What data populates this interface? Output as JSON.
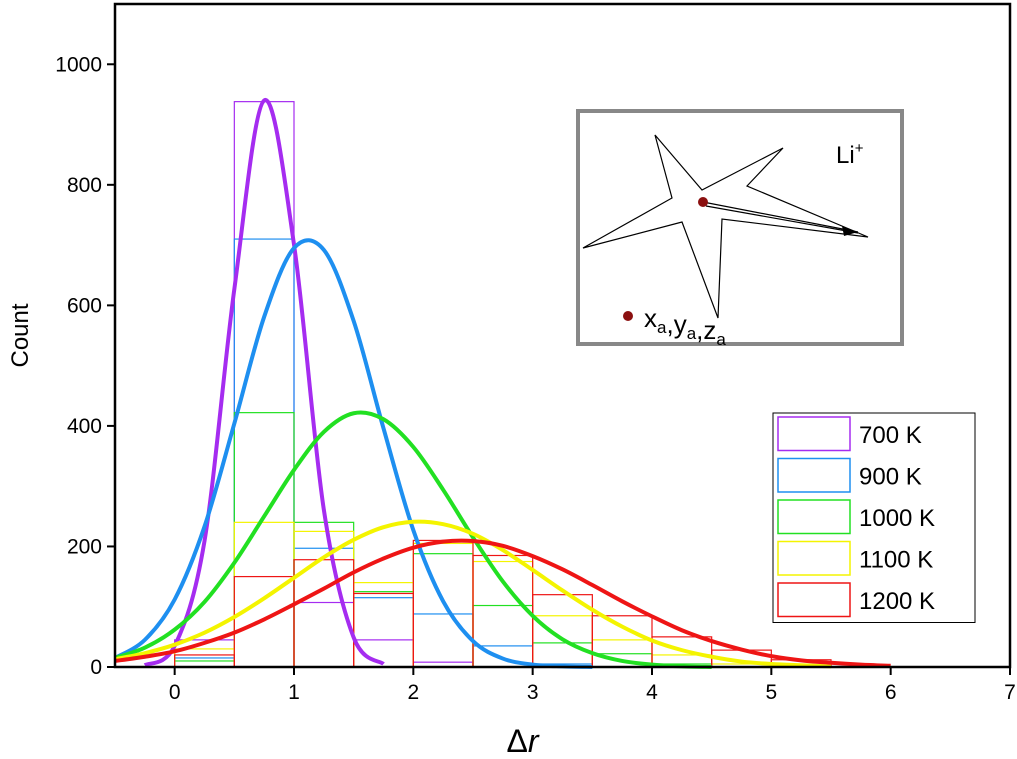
{
  "chart_data": {
    "type": "histogram",
    "xlabel": [
      "Δ",
      "r"
    ],
    "ylabel": "Count",
    "xlim": [
      -0.5,
      7
    ],
    "ylim": [
      0,
      1100
    ],
    "xticks": [
      0,
      1,
      2,
      3,
      4,
      5,
      6,
      7
    ],
    "yticks": [
      0,
      200,
      400,
      600,
      800,
      1000
    ],
    "bins": [
      0,
      0.5,
      1,
      1.5,
      2,
      2.5,
      3,
      3.5,
      4,
      4.5,
      5,
      5.5,
      6
    ],
    "legend": "right",
    "series": [
      {
        "name": "700 K",
        "color": "#a52cf0",
        "values": [
          45,
          938,
          107,
          45,
          8,
          0,
          0,
          0,
          0,
          0,
          0,
          0
        ],
        "fit": {
          "x": [
            -0.25,
            0,
            0.25,
            0.5,
            0.75,
            1,
            1.25,
            1.5,
            1.75
          ],
          "values": [
            3,
            35,
            209,
            627,
            940,
            701,
            261,
            49,
            5
          ]
        }
      },
      {
        "name": "900 K",
        "color": "#1e8ff0",
        "values": [
          15,
          710,
          197,
          115,
          88,
          35,
          5,
          0,
          0,
          0,
          0,
          0
        ],
        "fit": {
          "x": [
            -0.5,
            -0.25,
            0,
            0.25,
            0.5,
            0.75,
            1,
            1.25,
            1.5,
            1.75,
            2,
            2.25,
            2.5,
            2.75,
            3,
            3.25,
            3.5
          ],
          "values": [
            15,
            45,
            112,
            233,
            404,
            581,
            695,
            692,
            574,
            396,
            227,
            109,
            43,
            14,
            4,
            1,
            0
          ]
        }
      },
      {
        "name": "1000 K",
        "color": "#22e022",
        "values": [
          10,
          422,
          240,
          125,
          188,
          102,
          40,
          22,
          5,
          0,
          0,
          0
        ],
        "fit": {
          "x": [
            -0.5,
            -0.25,
            0,
            0.25,
            0.5,
            0.75,
            1,
            1.25,
            1.5,
            1.75,
            2,
            2.25,
            2.5,
            2.75,
            3,
            3.25,
            3.5,
            3.75,
            4,
            4.25,
            4.5
          ],
          "values": [
            15,
            32,
            62,
            108,
            173,
            250,
            327,
            390,
            421,
            411,
            365,
            294,
            215,
            142,
            85,
            46,
            23,
            10,
            4,
            1,
            0
          ]
        }
      },
      {
        "name": "1100 K",
        "color": "#f4f400",
        "values": [
          30,
          240,
          225,
          140,
          205,
          175,
          85,
          45,
          20,
          5,
          0,
          0
        ],
        "fit": {
          "x": [
            -0.5,
            -0.25,
            0,
            0.25,
            0.5,
            0.75,
            1,
            1.25,
            1.5,
            1.75,
            2,
            2.25,
            2.5,
            2.75,
            3,
            3.25,
            3.5,
            3.75,
            4,
            4.25,
            4.5,
            4.75,
            5,
            5.25,
            5.5
          ],
          "values": [
            13,
            23,
            37,
            57,
            83,
            114,
            148,
            182,
            211,
            232,
            241,
            237,
            221,
            194,
            161,
            127,
            95,
            67,
            44,
            28,
            17,
            9,
            5,
            3,
            1
          ]
        }
      },
      {
        "name": "1200 K",
        "color": "#ee1515",
        "values": [
          20,
          150,
          178,
          122,
          210,
          185,
          120,
          85,
          50,
          28,
          12,
          0
        ],
        "fit": {
          "x": [
            -0.5,
            -0.25,
            0,
            0.25,
            0.5,
            0.75,
            1,
            1.25,
            1.5,
            1.75,
            2,
            2.25,
            2.5,
            2.75,
            3,
            3.25,
            3.5,
            3.75,
            4,
            4.25,
            4.5,
            4.75,
            5,
            5.25,
            5.5,
            5.75,
            6
          ],
          "values": [
            10,
            17,
            26,
            40,
            57,
            79,
            104,
            130,
            157,
            180,
            198,
            208,
            209,
            201,
            184,
            162,
            136,
            109,
            84,
            61,
            43,
            29,
            18,
            11,
            7,
            4,
            2
          ]
        }
      }
    ],
    "inset": {
      "ion": "Li",
      "ion_charge": "+",
      "separator": ",",
      "coords": [
        {
          "base": "x",
          "sub": "a"
        },
        {
          "base": "y",
          "sub": "a"
        },
        {
          "base": "z",
          "sub": "a"
        }
      ]
    }
  }
}
